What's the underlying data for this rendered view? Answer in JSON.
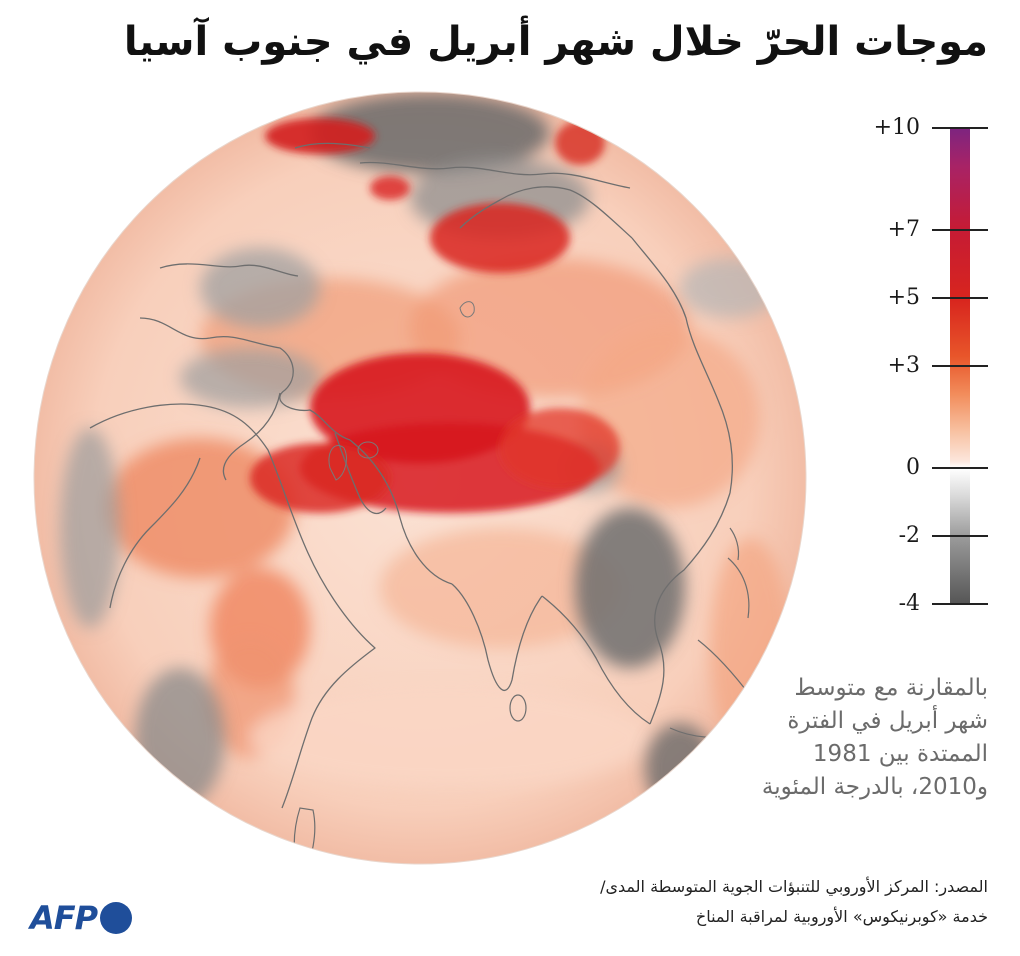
{
  "title": "موجات الحرّ خلال شهر أبريل في جنوب آسيا",
  "legend": {
    "ticks": [
      {
        "label": "+10",
        "value": 10
      },
      {
        "label": "+7",
        "value": 7
      },
      {
        "label": "+5",
        "value": 5
      },
      {
        "label": "+3",
        "value": 3
      },
      {
        "label": "0",
        "value": 0
      },
      {
        "label": "-2",
        "value": -2
      },
      {
        "label": "-4",
        "value": -4
      }
    ],
    "min": -4,
    "max": 10,
    "colors": {
      "max": "#7d2480",
      "high": "#d8251e",
      "mid": "#f28d5c",
      "zero": "#ffffff",
      "min": "#555555"
    }
  },
  "note": {
    "lines": [
      "بالمقارنة مع متوسط",
      "شهر أبريل في الفترة",
      "الممتدة بين 1981",
      "و2010، بالدرجة المئوية"
    ]
  },
  "source": {
    "line1": "المصدر: المركز الأوروبي للتنبؤات الجوية المتوسطة المدى/",
    "line2": "خدمة «كوبرنيكوس» الأوروبية لمراقبة المناخ"
  },
  "logo": {
    "text": "AFP",
    "color": "#1f4e9a"
  },
  "colors": {
    "anomaly_strong": "#d7191c",
    "anomaly_moderate": "#ee6a45",
    "anomaly_light": "#f6b394",
    "anomaly_faint": "#fbdfd2",
    "cold": "#8c8c8c",
    "cold_strong": "#5a5a5a",
    "coast": "#6e6e6e"
  }
}
